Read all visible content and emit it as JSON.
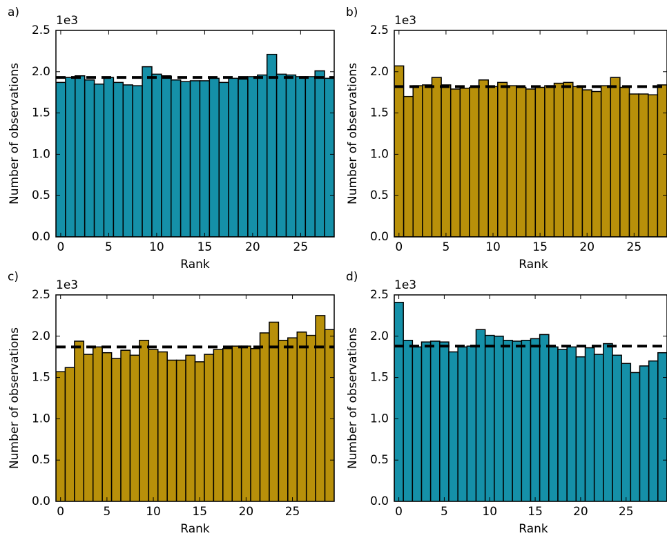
{
  "chart_data": [
    {
      "type": "bar",
      "panel_label": "a)",
      "y_offset_label": "1e3",
      "xlabel": "Rank",
      "ylabel": "Number of observations",
      "color": "#1590a8",
      "x": [
        0,
        1,
        2,
        3,
        4,
        5,
        6,
        7,
        8,
        9,
        10,
        11,
        12,
        13,
        14,
        15,
        16,
        17,
        18,
        19,
        20,
        21,
        22,
        23,
        24,
        25,
        26,
        27,
        28
      ],
      "values": [
        1.87,
        1.93,
        1.95,
        1.9,
        1.85,
        1.93,
        1.87,
        1.84,
        1.83,
        2.06,
        1.97,
        1.95,
        1.9,
        1.88,
        1.89,
        1.89,
        1.92,
        1.87,
        1.92,
        1.91,
        1.94,
        1.96,
        2.21,
        1.97,
        1.96,
        1.94,
        1.94,
        2.01,
        1.92
      ],
      "reference_line": 1.93,
      "xlim": [
        -0.5,
        28.5
      ],
      "xticks": [
        0,
        5,
        10,
        15,
        20,
        25
      ],
      "ylim": [
        0,
        2.5
      ],
      "yticks": [
        {
          "value": 0,
          "label": "0.0"
        },
        0.5,
        {
          "value": 1,
          "label": "1.0"
        },
        1.5,
        {
          "value": 2,
          "label": "2.0"
        },
        2.5
      ]
    },
    {
      "type": "bar",
      "panel_label": "b)",
      "y_offset_label": "1e3",
      "xlabel": "Rank",
      "ylabel": "Number of observations",
      "color": "#b8900a",
      "x": [
        0,
        1,
        2,
        3,
        4,
        5,
        6,
        7,
        8,
        9,
        10,
        11,
        12,
        13,
        14,
        15,
        16,
        17,
        18,
        19,
        20,
        21,
        22,
        23,
        24,
        25,
        26,
        27,
        28
      ],
      "values": [
        2.07,
        1.7,
        1.83,
        1.84,
        1.93,
        1.84,
        1.79,
        1.8,
        1.81,
        1.9,
        1.82,
        1.87,
        1.83,
        1.81,
        1.79,
        1.81,
        1.83,
        1.86,
        1.87,
        1.82,
        1.78,
        1.76,
        1.83,
        1.93,
        1.81,
        1.73,
        1.73,
        1.72,
        1.84
      ],
      "reference_line": 1.82,
      "xlim": [
        -0.5,
        28.5
      ],
      "xticks": [
        0,
        5,
        10,
        15,
        20,
        25
      ],
      "ylim": [
        0,
        2.5
      ],
      "yticks": [
        {
          "value": 0,
          "label": "0.0"
        },
        0.5,
        {
          "value": 1,
          "label": "1.0"
        },
        1.5,
        {
          "value": 2,
          "label": "2.0"
        },
        2.5
      ]
    },
    {
      "type": "bar",
      "panel_label": "c)",
      "y_offset_label": "1e3",
      "xlabel": "Rank",
      "ylabel": "Number of observations",
      "color": "#b8900a",
      "x": [
        0,
        1,
        2,
        3,
        4,
        5,
        6,
        7,
        8,
        9,
        10,
        11,
        12,
        13,
        14,
        15,
        16,
        17,
        18,
        19,
        20,
        21,
        22,
        23,
        24,
        25,
        26,
        27,
        28,
        29
      ],
      "values": [
        1.57,
        1.62,
        1.94,
        1.78,
        1.87,
        1.8,
        1.73,
        1.83,
        1.77,
        1.95,
        1.84,
        1.81,
        1.71,
        1.71,
        1.77,
        1.69,
        1.78,
        1.84,
        1.85,
        1.88,
        1.88,
        1.85,
        2.04,
        2.17,
        1.95,
        1.98,
        2.05,
        2.01,
        2.25,
        2.08
      ],
      "reference_line": 1.87,
      "xlim": [
        -0.5,
        29.5
      ],
      "xticks": [
        0,
        5,
        10,
        15,
        20,
        25
      ],
      "ylim": [
        0,
        2.5
      ],
      "yticks": [
        {
          "value": 0,
          "label": "0.0"
        },
        0.5,
        {
          "value": 1,
          "label": "1.0"
        },
        1.5,
        {
          "value": 2,
          "label": "2.0"
        },
        2.5
      ]
    },
    {
      "type": "bar",
      "panel_label": "d)",
      "y_offset_label": "1e3",
      "xlabel": "Rank",
      "ylabel": "Number of observations",
      "color": "#1590a8",
      "x": [
        0,
        1,
        2,
        3,
        4,
        5,
        6,
        7,
        8,
        9,
        10,
        11,
        12,
        13,
        14,
        15,
        16,
        17,
        18,
        19,
        20,
        21,
        22,
        23,
        24,
        25,
        26,
        27,
        28,
        29
      ],
      "values": [
        2.41,
        1.95,
        1.87,
        1.93,
        1.94,
        1.93,
        1.81,
        1.87,
        1.88,
        2.08,
        2.01,
        2.0,
        1.95,
        1.94,
        1.95,
        1.97,
        2.02,
        1.87,
        1.84,
        1.87,
        1.75,
        1.86,
        1.78,
        1.91,
        1.77,
        1.67,
        1.56,
        1.64,
        1.7,
        1.8
      ],
      "reference_line": 1.88,
      "xlim": [
        -0.5,
        29.5
      ],
      "xticks": [
        0,
        5,
        10,
        15,
        20,
        25
      ],
      "ylim": [
        0,
        2.5
      ],
      "yticks": [
        {
          "value": 0,
          "label": "0.0"
        },
        0.5,
        {
          "value": 1,
          "label": "1.0"
        },
        1.5,
        {
          "value": 2,
          "label": "2.0"
        },
        2.5
      ]
    }
  ]
}
